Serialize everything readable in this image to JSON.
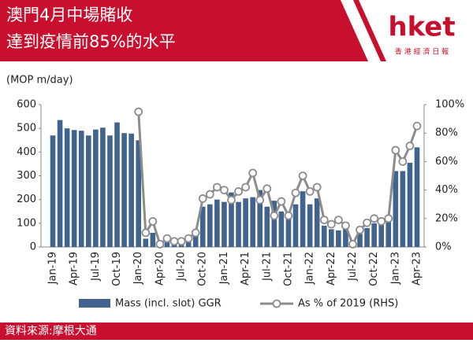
{
  "header": {
    "title_lines": [
      "澳門4月中場賭收",
      "達到疫情前85%的水平"
    ],
    "logo": "hket",
    "logo_sub": "香 港 經 濟 日 報"
  },
  "footer": {
    "source": "資料來源:摩根大通"
  },
  "chart_data": {
    "type": "bar_line",
    "y_unit_label": "(MOP m/day)",
    "categories": [
      "Jan-19",
      null,
      null,
      "Apr-19",
      null,
      null,
      "Jul-19",
      null,
      null,
      "Oct-19",
      null,
      null,
      "Jan-20",
      null,
      null,
      "Apr-20",
      null,
      null,
      "Jul-20",
      null,
      null,
      "Oct-20",
      null,
      null,
      "Jan-21",
      null,
      null,
      "Apr-21",
      null,
      null,
      "Jul-21",
      null,
      null,
      "Oct-21",
      null,
      null,
      "Jan-22",
      null,
      null,
      "Apr-22",
      null,
      null,
      "Jul-22",
      null,
      null,
      "Oct-22",
      null,
      null,
      "Jan-23",
      null,
      null,
      "Apr-23"
    ],
    "series": [
      {
        "name": "Mass (incl. slot) GGR",
        "color": "#41648f",
        "axis": "y",
        "values": [
          470,
          535,
          500,
          493,
          490,
          470,
          495,
          503,
          470,
          525,
          480,
          478,
          450,
          35,
          60,
          8,
          20,
          20,
          25,
          40,
          60,
          170,
          180,
          200,
          190,
          230,
          190,
          205,
          210,
          240,
          170,
          195,
          150,
          145,
          180,
          235,
          180,
          205,
          90,
          75,
          70,
          80,
          5,
          55,
          80,
          100,
          95,
          110,
          320,
          320,
          355,
          420
        ]
      },
      {
        "name": "As % of 2019 (RHS)",
        "color": "#8c8c8c",
        "axis": "y2",
        "values": [
          null,
          null,
          null,
          null,
          null,
          null,
          null,
          null,
          null,
          null,
          null,
          null,
          95,
          10,
          18,
          2,
          6,
          4,
          4,
          6,
          10,
          34,
          37,
          42,
          40,
          33,
          39,
          42,
          52,
          33,
          41,
          22,
          32,
          22,
          38,
          50,
          39,
          42,
          19,
          16,
          19,
          15,
          2,
          12,
          17,
          20,
          18,
          20,
          68,
          60,
          71,
          85
        ]
      }
    ],
    "ylim": [
      0,
      600
    ],
    "yticks": [
      0,
      100,
      200,
      300,
      400,
      500,
      600
    ],
    "y2lim": [
      0,
      100
    ],
    "y2ticks": [
      {
        "value": 0,
        "label": "0%"
      },
      {
        "value": 20,
        "label": "20%"
      },
      {
        "value": 40,
        "label": "40%"
      },
      {
        "value": 60,
        "label": "60%"
      },
      {
        "value": 80,
        "label": "80%"
      },
      {
        "value": 100,
        "label": "100%"
      }
    ]
  }
}
